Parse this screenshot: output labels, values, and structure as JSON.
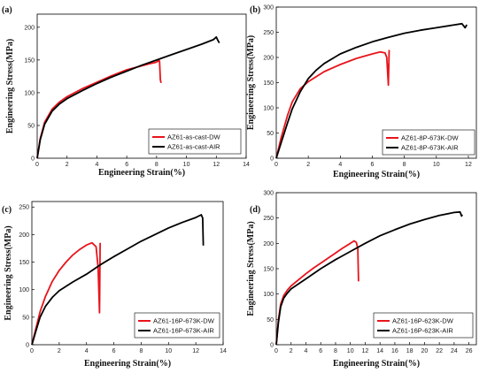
{
  "chart_data": [
    {
      "type": "line",
      "panel_label": "(a)",
      "xlabel": "Engineering Strain(%)",
      "ylabel": "Engineering Stress(MPa)",
      "xlim": [
        0,
        14
      ],
      "ylim": [
        0,
        220
      ],
      "xticks": [
        0,
        2,
        4,
        6,
        8,
        10,
        12,
        14
      ],
      "yticks": [
        0,
        50,
        100,
        150,
        200
      ],
      "legend_position": "bottom-right",
      "series": [
        {
          "name": "AZ61-as-cast-DW",
          "color": "#e8141b",
          "x": [
            0,
            0.2,
            0.5,
            1.0,
            1.5,
            2.0,
            3.0,
            4.0,
            5.0,
            6.0,
            7.0,
            7.5,
            7.9,
            8.1,
            8.15,
            8.2,
            8.25,
            8.3
          ],
          "y": [
            0,
            30,
            55,
            75,
            86,
            94,
            106,
            116,
            126,
            135,
            141,
            144,
            146,
            148,
            150,
            148,
            120,
            115
          ]
        },
        {
          "name": "AZ61-as-cast-AIR",
          "color": "#000000",
          "x": [
            0,
            0.2,
            0.5,
            1.0,
            1.5,
            2.0,
            3.0,
            4.0,
            5.0,
            6.0,
            7.0,
            8.0,
            9.0,
            10.0,
            11.0,
            11.8,
            12.0,
            12.1,
            12.2
          ],
          "y": [
            0,
            28,
            52,
            72,
            83,
            91,
            103,
            114,
            124,
            133,
            142,
            150,
            158,
            166,
            174,
            181,
            185,
            180,
            176
          ]
        }
      ]
    },
    {
      "type": "line",
      "panel_label": "(b)",
      "xlabel": "Engineering Strain(%)",
      "ylabel": "Engineering Stress(MPa)",
      "xlim": [
        0,
        12.5
      ],
      "ylim": [
        0,
        300
      ],
      "xticks": [
        0,
        2,
        4,
        6,
        8,
        10,
        12
      ],
      "yticks": [
        0,
        50,
        100,
        150,
        200,
        250,
        300
      ],
      "legend_position": "bottom-right",
      "series": [
        {
          "name": "AZ61-8P-673K-DW",
          "color": "#e8141b",
          "x": [
            0,
            0.3,
            0.7,
            1.0,
            1.5,
            2.0,
            3.0,
            4.0,
            5.0,
            6.0,
            6.5,
            6.8,
            6.9,
            7.0,
            7.05
          ],
          "y": [
            0,
            40,
            85,
            112,
            138,
            152,
            172,
            186,
            198,
            207,
            211,
            209,
            200,
            145,
            215
          ]
        },
        {
          "name": "AZ61-8P-673K-AIR",
          "color": "#000000",
          "x": [
            0,
            0.3,
            0.7,
            1.0,
            1.5,
            2.0,
            2.5,
            3.0,
            4.0,
            5.0,
            6.0,
            7.0,
            8.0,
            9.0,
            10.0,
            11.0,
            11.6,
            11.8,
            11.9
          ],
          "y": [
            0,
            30,
            70,
            98,
            132,
            158,
            175,
            188,
            207,
            220,
            231,
            240,
            248,
            254,
            259,
            264,
            267,
            259,
            265
          ]
        }
      ]
    },
    {
      "type": "line",
      "panel_label": "(c)",
      "xlabel": "Engineering Strain(%)",
      "ylabel": "Engineering Stress(MPa)",
      "xlim": [
        0,
        14
      ],
      "ylim": [
        0,
        260
      ],
      "xticks": [
        0,
        2,
        4,
        6,
        8,
        10,
        12,
        14
      ],
      "yticks": [
        0,
        50,
        100,
        150,
        200,
        250
      ],
      "legend_position": "bottom-right",
      "series": [
        {
          "name": "AZ61-16P-673K-DW",
          "color": "#e8141b",
          "x": [
            0,
            0.3,
            0.6,
            1.0,
            1.5,
            2.0,
            2.5,
            3.0,
            3.5,
            4.0,
            4.4,
            4.7,
            4.85,
            4.95,
            5.0
          ],
          "y": [
            0,
            30,
            60,
            88,
            115,
            135,
            150,
            163,
            173,
            181,
            185,
            178,
            140,
            58,
            185
          ]
        },
        {
          "name": "AZ61-16P-673K-AIR",
          "color": "#000000",
          "x": [
            0,
            0.3,
            0.6,
            1.0,
            1.5,
            2.0,
            3.0,
            4.0,
            5.0,
            6.0,
            7.0,
            8.0,
            9.0,
            10.0,
            11.0,
            12.0,
            12.4,
            12.5,
            12.55
          ],
          "y": [
            0,
            25,
            50,
            70,
            86,
            98,
            114,
            128,
            145,
            160,
            174,
            188,
            200,
            212,
            222,
            231,
            236,
            230,
            180
          ]
        }
      ]
    },
    {
      "type": "line",
      "panel_label": "(d)",
      "xlabel": "Engineering Strain(%)",
      "ylabel": "Engineering Stress(MPa)",
      "xlim": [
        0,
        27
      ],
      "ylim": [
        0,
        300
      ],
      "xticks": [
        0,
        2,
        4,
        6,
        8,
        10,
        12,
        14,
        16,
        18,
        20,
        22,
        24,
        26
      ],
      "yticks": [
        0,
        50,
        100,
        150,
        200,
        250,
        300
      ],
      "legend_position": "bottom-right",
      "series": [
        {
          "name": "AZ61-16P-623K-DW",
          "color": "#e8141b",
          "x": [
            0,
            0.3,
            0.6,
            1.0,
            1.5,
            2.0,
            3.0,
            4.0,
            5.0,
            6.0,
            7.0,
            8.0,
            9.0,
            10.0,
            10.5,
            10.8,
            11.0,
            11.1
          ],
          "y": [
            0,
            50,
            80,
            97,
            108,
            116,
            128,
            140,
            151,
            161,
            171,
            181,
            191,
            200,
            205,
            202,
            190,
            125
          ]
        },
        {
          "name": "AZ61-16P-623K-AIR",
          "color": "#000000",
          "x": [
            0,
            0.3,
            0.6,
            1.0,
            1.5,
            2.0,
            4.0,
            6.0,
            8.0,
            10.0,
            12.0,
            14.0,
            16.0,
            18.0,
            20.0,
            22.0,
            24.0,
            24.8,
            25.0,
            25.1
          ],
          "y": [
            0,
            45,
            75,
            92,
            102,
            110,
            130,
            150,
            168,
            184,
            200,
            215,
            227,
            238,
            247,
            255,
            261,
            262,
            254,
            257
          ]
        }
      ]
    }
  ]
}
